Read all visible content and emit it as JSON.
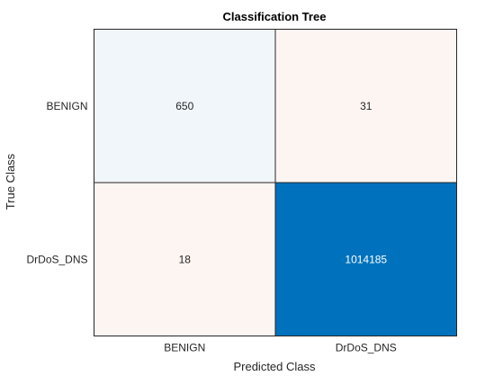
{
  "chart_data": {
    "type": "heatmap",
    "title": "Classification Tree",
    "xlabel": "Predicted Class",
    "ylabel": "True Class",
    "x_categories": [
      "BENIGN",
      "DrDoS_DNS"
    ],
    "y_categories": [
      "BENIGN",
      "DrDoS_DNS"
    ],
    "values": [
      [
        650,
        31
      ],
      [
        18,
        1014185
      ]
    ],
    "colors": {
      "diag_low": "#f1f6fb",
      "offdiag": "#fdf5f2",
      "diag_high": "#0072bd",
      "text_dark": "#262626",
      "text_light": "#ffffff"
    }
  }
}
